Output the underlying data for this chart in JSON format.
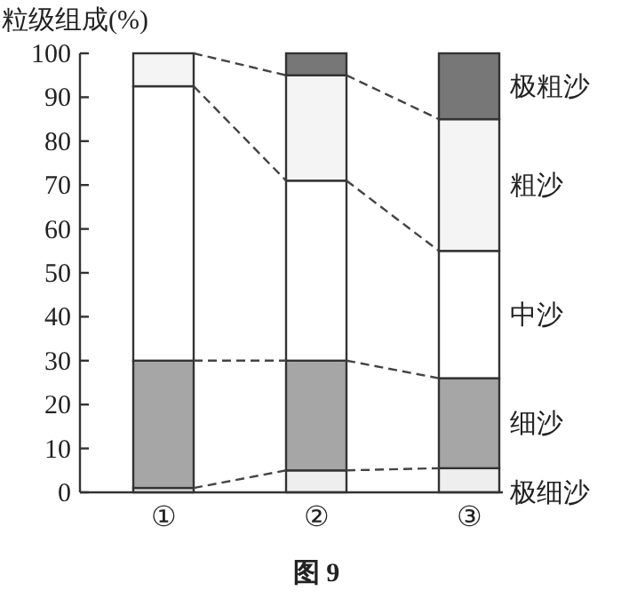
{
  "chart_data": {
    "type": "bar",
    "stacked": true,
    "ylabel": "粒级组成(%)",
    "categories": [
      "①",
      "②",
      "③"
    ],
    "series": [
      {
        "name": "极细沙",
        "color": "#eeeeee",
        "values": [
          1,
          5,
          5.5
        ]
      },
      {
        "name": "细沙",
        "color": "#a6a6a6",
        "values": [
          29,
          25,
          20.5
        ]
      },
      {
        "name": "中沙",
        "color": "#ffffff",
        "values": [
          62.5,
          41,
          29
        ]
      },
      {
        "name": "粗沙",
        "color": "#f4f4f4",
        "values": [
          7.5,
          24,
          30
        ]
      },
      {
        "name": "极粗沙",
        "color": "#777777",
        "values": [
          0,
          5,
          15
        ]
      }
    ],
    "ylim": [
      0,
      100
    ],
    "yticks": [
      0,
      10,
      20,
      30,
      40,
      50,
      60,
      70,
      80,
      90,
      100
    ],
    "grid": false,
    "legend": "right",
    "annotations": [
      "图 9"
    ]
  }
}
